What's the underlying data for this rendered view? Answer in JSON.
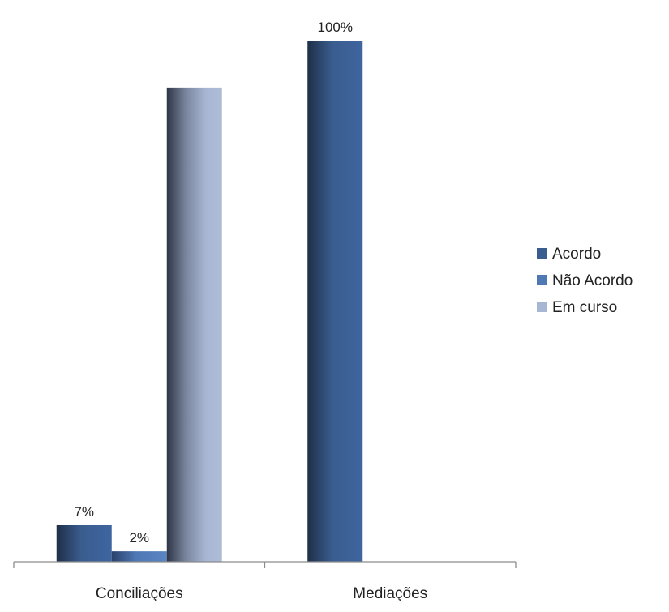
{
  "chart_data": {
    "type": "bar",
    "title": "",
    "xlabel": "",
    "ylabel": "",
    "categories": [
      "Conciliações",
      "Mediações"
    ],
    "series": [
      {
        "name": "Acordo",
        "values": [
          7,
          100
        ],
        "labels": [
          "7%",
          "100%"
        ],
        "color": "#3a5d8f"
      },
      {
        "name": "Não Acordo",
        "values": [
          2,
          null
        ],
        "labels": [
          "2%",
          ""
        ],
        "color": "#4f79b5"
      },
      {
        "name": "Em curso",
        "values": [
          91,
          null
        ],
        "labels": [
          "",
          ""
        ],
        "color": "#a7b6d3"
      }
    ],
    "ylim": [
      0,
      100
    ],
    "grid": false,
    "y_axis_visible": false,
    "legend_position": "right"
  }
}
